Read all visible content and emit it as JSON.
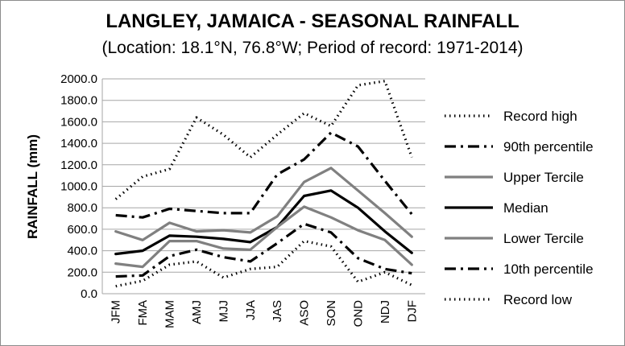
{
  "chart_data": {
    "type": "line",
    "title": "LANGLEY, JAMAICA - SEASONAL RAINFALL",
    "subtitle": "(Location: 18.1°N, 76.8°W; Period of record: 1971-2014)",
    "xlabel": "",
    "ylabel": "RAINFALL (mm)",
    "ylim": [
      0,
      2000
    ],
    "yticks": [
      "0.0",
      "200.0",
      "400.0",
      "600.0",
      "800.0",
      "1000.0",
      "1200.0",
      "1400.0",
      "1600.0",
      "1800.0",
      "2000.0"
    ],
    "categories": [
      "JFM",
      "FMA",
      "MAM",
      "AMJ",
      "MJJ",
      "JJA",
      "JAS",
      "ASO",
      "SON",
      "OND",
      "NDJ",
      "DJF"
    ],
    "grid": "horizontal",
    "legend": "right",
    "series": [
      {
        "name": "Record high",
        "style": "dotted",
        "color": "#000000",
        "values": [
          880,
          1090,
          1160,
          1640,
          1480,
          1270,
          1480,
          1680,
          1560,
          1940,
          1980,
          1270
        ]
      },
      {
        "name": "90th percentile",
        "style": "dashdot",
        "color": "#000000",
        "values": [
          730,
          710,
          790,
          770,
          750,
          750,
          1110,
          1250,
          1500,
          1370,
          1050,
          740
        ]
      },
      {
        "name": "Upper Tercile",
        "style": "solid",
        "color": "#808080",
        "values": [
          580,
          500,
          660,
          580,
          590,
          570,
          720,
          1040,
          1170,
          960,
          750,
          530
        ]
      },
      {
        "name": "Median",
        "style": "solid",
        "color": "#000000",
        "values": [
          370,
          400,
          540,
          530,
          510,
          480,
          620,
          910,
          960,
          800,
          580,
          380
        ]
      },
      {
        "name": "Lower Tercile",
        "style": "solid",
        "color": "#808080",
        "values": [
          280,
          250,
          490,
          490,
          420,
          410,
          620,
          810,
          710,
          590,
          500,
          270
        ]
      },
      {
        "name": "10th percentile",
        "style": "dashdot",
        "color": "#000000",
        "values": [
          160,
          170,
          350,
          410,
          340,
          300,
          470,
          650,
          570,
          330,
          230,
          190
        ]
      },
      {
        "name": "Record low",
        "style": "dotted",
        "color": "#000000",
        "values": [
          70,
          120,
          270,
          300,
          150,
          230,
          250,
          490,
          440,
          110,
          200,
          80
        ]
      }
    ]
  }
}
